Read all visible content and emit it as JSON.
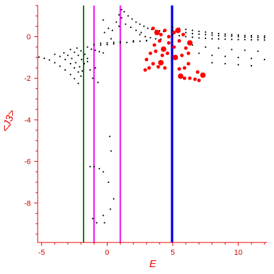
{
  "chart_data": {
    "type": "scatter",
    "title": "",
    "xlabel": "E",
    "ylabel": "<J3>",
    "xlim": [
      -5.3,
      12.2
    ],
    "ylim": [
      -9.9,
      1.5
    ],
    "xticks": [
      -5,
      0,
      5,
      10
    ],
    "yticks": [
      0,
      -2,
      -4,
      -6,
      -8
    ],
    "grid": false,
    "axis_color": "#e00000",
    "vertical_lines": [
      {
        "x": -1.8,
        "color": "#008000"
      },
      {
        "x": -1.0,
        "color": "#ee00ee"
      },
      {
        "x": 1.0,
        "color": "#ee00ee"
      },
      {
        "x": 4.95,
        "color": "#0000ee"
      }
    ],
    "series": [
      {
        "color": "#000000",
        "points": [
          [
            -5.2,
            -0.98
          ],
          [
            -4.8,
            -1.04
          ],
          [
            -4.4,
            -1.12
          ],
          [
            -4.0,
            -1.25
          ],
          [
            -3.6,
            -1.42
          ],
          [
            -3.2,
            -1.6
          ],
          [
            -2.8,
            -1.82
          ],
          [
            -2.5,
            -2.02
          ],
          [
            -2.2,
            -2.25
          ],
          [
            -4.0,
            -0.85
          ],
          [
            -3.6,
            -0.95
          ],
          [
            -3.2,
            -1.1
          ],
          [
            -2.8,
            -1.3
          ],
          [
            -2.5,
            -1.5
          ],
          [
            -2.2,
            -1.7
          ],
          [
            -2.0,
            -1.9
          ],
          [
            -3.3,
            -0.78
          ],
          [
            -3.0,
            -0.9
          ],
          [
            -2.7,
            -1.05
          ],
          [
            -2.4,
            -1.25
          ],
          [
            -2.1,
            -1.45
          ],
          [
            -1.9,
            -1.65
          ],
          [
            -2.8,
            -0.62
          ],
          [
            -2.5,
            -0.75
          ],
          [
            -2.2,
            -0.9
          ],
          [
            -1.95,
            -1.1
          ],
          [
            -1.75,
            -1.3
          ],
          [
            -2.3,
            -0.55
          ],
          [
            -2.0,
            -0.68
          ],
          [
            -1.7,
            -0.85
          ],
          [
            -1.5,
            -1.05
          ],
          [
            -1.5,
            -0.5
          ],
          [
            -1.2,
            -0.6
          ],
          [
            -0.9,
            -0.65
          ],
          [
            -0.6,
            -0.72
          ],
          [
            -0.3,
            -0.78
          ],
          [
            -1.0,
            -0.38
          ],
          [
            -0.5,
            -0.4
          ],
          [
            0.0,
            -0.38
          ],
          [
            0.5,
            -0.35
          ],
          [
            1.0,
            -0.3
          ],
          [
            1.5,
            -0.28
          ],
          [
            2.0,
            -0.25
          ],
          [
            2.5,
            -0.22
          ],
          [
            3.0,
            -0.2
          ],
          [
            -0.5,
            -0.32
          ],
          [
            0.0,
            -0.3
          ],
          [
            0.5,
            -0.27
          ],
          [
            1.0,
            -0.24
          ],
          [
            2.0,
            -0.2
          ],
          [
            3.0,
            -0.18
          ],
          [
            0.4,
            0.3
          ],
          [
            0.7,
            0.7
          ],
          [
            0.9,
            1.05
          ],
          [
            1.1,
            1.3
          ],
          [
            1.3,
            1.2
          ],
          [
            1.6,
            1.0
          ],
          [
            1.9,
            0.85
          ],
          [
            2.2,
            0.7
          ],
          [
            2.5,
            0.6
          ],
          [
            0.9,
            0.5
          ],
          [
            1.1,
            0.9
          ],
          [
            1.4,
            0.6
          ],
          [
            1.8,
            0.45
          ],
          [
            2.2,
            0.3
          ],
          [
            2.6,
            0.2
          ],
          [
            -0.3,
            0.8
          ],
          [
            0.1,
            0.4
          ],
          [
            0.3,
            -0.1
          ],
          [
            -0.2,
            0.2
          ],
          [
            2.8,
            0.5
          ],
          [
            3.1,
            0.4
          ],
          [
            3.4,
            0.35
          ],
          [
            3.7,
            0.3
          ],
          [
            4.0,
            0.28
          ],
          [
            4.3,
            0.25
          ],
          [
            2.5,
            0.1
          ],
          [
            2.9,
            0.0
          ],
          [
            3.3,
            -0.05
          ],
          [
            3.7,
            -0.1
          ],
          [
            4.1,
            -0.12
          ],
          [
            5.0,
            0.45
          ],
          [
            5.5,
            0.4
          ],
          [
            6.0,
            0.35
          ],
          [
            6.5,
            0.3
          ],
          [
            7.0,
            0.25
          ],
          [
            7.5,
            0.22
          ],
          [
            8.0,
            0.18
          ],
          [
            8.5,
            0.15
          ],
          [
            9.0,
            0.12
          ],
          [
            9.5,
            0.1
          ],
          [
            10.0,
            0.08
          ],
          [
            10.5,
            0.06
          ],
          [
            11.0,
            0.05
          ],
          [
            11.5,
            0.04
          ],
          [
            12.0,
            0.03
          ],
          [
            5.0,
            0.3
          ],
          [
            5.5,
            0.25
          ],
          [
            6.0,
            0.2
          ],
          [
            6.5,
            0.15
          ],
          [
            7.0,
            0.12
          ],
          [
            7.5,
            0.1
          ],
          [
            8.0,
            0.07
          ],
          [
            8.5,
            0.05
          ],
          [
            9.0,
            0.03
          ],
          [
            9.5,
            0.02
          ],
          [
            10.0,
            0.0
          ],
          [
            10.5,
            -0.02
          ],
          [
            11.0,
            -0.03
          ],
          [
            11.5,
            -0.04
          ],
          [
            12.0,
            -0.05
          ],
          [
            5.0,
            0.1
          ],
          [
            5.5,
            0.05
          ],
          [
            6.0,
            0.0
          ],
          [
            6.5,
            -0.03
          ],
          [
            7.0,
            -0.06
          ],
          [
            7.5,
            -0.08
          ],
          [
            8.0,
            -0.1
          ],
          [
            8.5,
            -0.11
          ],
          [
            9.0,
            -0.12
          ],
          [
            9.5,
            -0.13
          ],
          [
            10.0,
            -0.14
          ],
          [
            10.5,
            -0.14
          ],
          [
            11.0,
            -0.15
          ],
          [
            11.5,
            -0.15
          ],
          [
            12.0,
            -0.16
          ],
          [
            6.5,
            -0.4
          ],
          [
            7.5,
            -0.5
          ],
          [
            8.5,
            -0.55
          ],
          [
            9.5,
            -0.62
          ],
          [
            10.5,
            -0.65
          ],
          [
            11.5,
            -0.7
          ],
          [
            7.0,
            -0.8
          ],
          [
            8.0,
            -0.9
          ],
          [
            9.0,
            -0.95
          ],
          [
            10.0,
            -1.0
          ],
          [
            11.0,
            -1.05
          ],
          [
            12.0,
            -1.1
          ],
          [
            8.0,
            -1.25
          ],
          [
            9.0,
            -1.3
          ],
          [
            10.0,
            -1.35
          ],
          [
            11.0,
            -1.4
          ],
          [
            -1.5,
            -1.2
          ],
          [
            -1.3,
            -1.6
          ],
          [
            -1.1,
            -2.0
          ],
          [
            -0.9,
            -1.5
          ],
          [
            -0.7,
            -2.2
          ],
          [
            -1.3,
            -6.25
          ],
          [
            -1.0,
            -6.25
          ],
          [
            -0.6,
            -6.35
          ],
          [
            -0.3,
            -6.5
          ],
          [
            -1.1,
            -8.75
          ],
          [
            -0.8,
            -8.95
          ],
          [
            -0.3,
            -8.6
          ],
          [
            -0.2,
            -8.95
          ],
          [
            0.2,
            -4.8
          ],
          [
            0.3,
            -5.5
          ],
          [
            0.1,
            -7.0
          ],
          [
            0.25,
            -8.3
          ],
          [
            0.5,
            -7.8
          ]
        ]
      },
      {
        "color": "#ff0000",
        "points": [
          [
            3.8,
            0.2
          ],
          [
            4.1,
            0.1
          ],
          [
            4.4,
            0.3
          ],
          [
            4.7,
            0.0
          ],
          [
            5.1,
            0.2
          ],
          [
            5.4,
            0.3
          ],
          [
            5.8,
            0.1
          ],
          [
            3.5,
            0.4
          ],
          [
            3.6,
            -0.4
          ],
          [
            4.0,
            -0.2
          ],
          [
            4.3,
            -0.6
          ],
          [
            4.7,
            -0.3
          ],
          [
            5.1,
            -0.5
          ],
          [
            5.5,
            -0.2
          ],
          [
            6.0,
            -0.55
          ],
          [
            6.3,
            -0.3
          ],
          [
            3.3,
            -0.8
          ],
          [
            3.7,
            -0.7
          ],
          [
            4.2,
            -0.9
          ],
          [
            4.6,
            -0.8
          ],
          [
            5.2,
            -1.0
          ],
          [
            5.7,
            -0.9
          ],
          [
            6.2,
            -0.8
          ],
          [
            3.5,
            -1.3
          ],
          [
            3.9,
            -1.45
          ],
          [
            4.1,
            -1.25
          ],
          [
            4.4,
            -1.5
          ],
          [
            5.5,
            -1.55
          ],
          [
            5.9,
            -1.5
          ],
          [
            6.2,
            -1.3
          ],
          [
            5.6,
            -1.9
          ],
          [
            5.9,
            -2.0
          ],
          [
            6.3,
            -2.0
          ],
          [
            6.7,
            -2.05
          ],
          [
            7.0,
            -2.1
          ],
          [
            7.3,
            -1.85
          ],
          [
            2.9,
            -1.6
          ],
          [
            3.2,
            -1.5
          ],
          [
            6.9,
            -1.7
          ],
          [
            3.0,
            -1.1
          ]
        ]
      }
    ]
  }
}
